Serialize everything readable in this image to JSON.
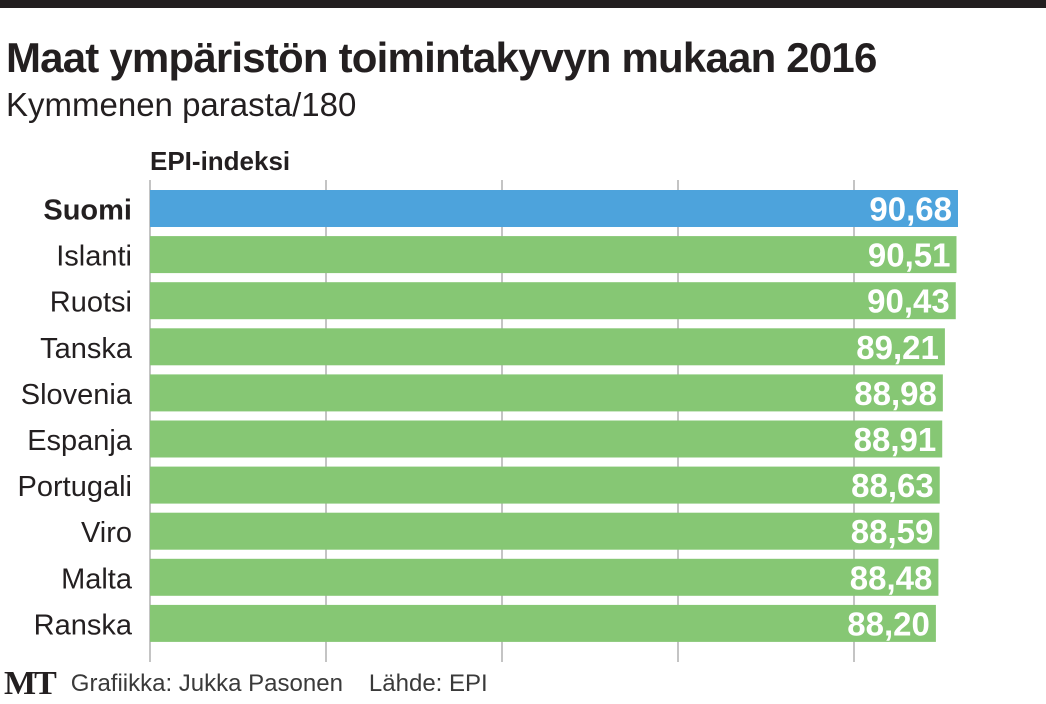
{
  "title": "Maat ympäristön toimintakyvyn mukaan 2016",
  "subtitle": "Kymmenen parasta/180",
  "footer": {
    "logo": "MT",
    "credit": "Grafiikka: Jukka Pasonen",
    "source": "Lähde: EPI"
  },
  "colors": {
    "highlight": "#4da3dc",
    "bar": "#86c774",
    "grid": "#8a8a8a",
    "text": "#231f20"
  },
  "chart_data": {
    "type": "bar",
    "orientation": "horizontal",
    "title": "Maat ympäristön toimintakyvyn mukaan 2016",
    "subtitle": "Kymmenen parasta/180",
    "xlabel": "EPI-indeksi",
    "ylabel": "",
    "xlim": [
      0,
      90.68
    ],
    "grid": true,
    "highlight": "Suomi",
    "categories": [
      "Suomi",
      "Islanti",
      "Ruotsi",
      "Tanska",
      "Slovenia",
      "Espanja",
      "Portugali",
      "Viro",
      "Malta",
      "Ranska"
    ],
    "values": [
      90.68,
      90.51,
      90.43,
      89.21,
      88.98,
      88.91,
      88.63,
      88.59,
      88.48,
      88.2
    ],
    "labels": [
      "90,68",
      "90,51",
      "90,43",
      "89,21",
      "88,98",
      "88,91",
      "88,63",
      "88,59",
      "88,48",
      "88,20"
    ]
  }
}
